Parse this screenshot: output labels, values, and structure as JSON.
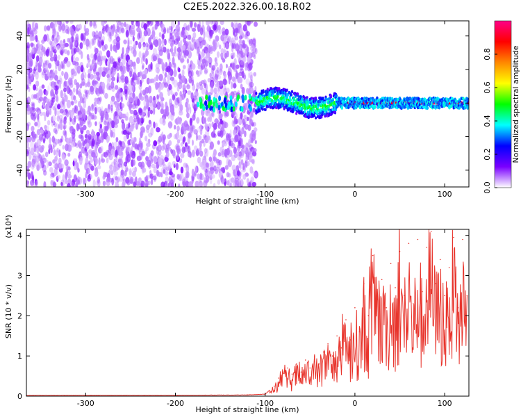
{
  "figure": {
    "title": "C2E5.2022.326.00.18.R02"
  },
  "chart_data": [
    {
      "type": "heatmap",
      "title": "",
      "xlabel": "Height of straight line (km)",
      "ylabel": "Frequency (Hz)",
      "xlim": [
        -366,
        127
      ],
      "ylim": [
        -50,
        49
      ],
      "xticks": [
        "-300",
        "-200",
        "-100",
        "0",
        "100"
      ],
      "yticks": [
        "-40",
        "-20",
        "0",
        "20",
        "40"
      ],
      "regions": [
        {
          "name": "broadband noise",
          "x": [
            -366,
            -110
          ],
          "y": [
            -50,
            49
          ]
        },
        {
          "name": "sporadic near-zero returns",
          "x": [
            -175,
            -110
          ],
          "y": [
            -4,
            4
          ]
        },
        {
          "name": "wavy signal band",
          "x": [
            -110,
            -20
          ],
          "y": [
            -8,
            8
          ]
        },
        {
          "name": "strong steady signal",
          "x": [
            -20,
            127
          ],
          "y": [
            -2,
            2
          ]
        }
      ],
      "colorbar": {
        "label": "Normalized spectral amplitude",
        "range": [
          0,
          1
        ],
        "ticks": [
          "0.0",
          "0.2",
          "0.4",
          "0.6",
          "0.8"
        ],
        "colors": [
          "#ffffff",
          "#7a00ff",
          "#0000ff",
          "#00ffff",
          "#00ff00",
          "#ffff00",
          "#ff8800",
          "#ff0000",
          "#ff0088"
        ]
      },
      "grid": false
    },
    {
      "type": "line",
      "title": "",
      "xlabel": "Height of straight line (km)",
      "ylabel": "SNR (10 * v/v)",
      "scale_label": "(x10⁴)",
      "xlim": [
        -366,
        127
      ],
      "ylim": [
        0,
        4.15
      ],
      "xticks": [
        "-300",
        "-200",
        "-100",
        "0",
        "100"
      ],
      "yticks": [
        "0",
        "1",
        "2",
        "3",
        "4"
      ],
      "color": "#e8342c",
      "grid": false,
      "series": [
        {
          "x": [
            -366,
            -300,
            -200,
            -120,
            -100,
            -90,
            -85,
            -80,
            -75,
            -70,
            -65,
            -60,
            -55,
            -50,
            -45,
            -40,
            -35,
            -30,
            -25,
            -20,
            -15,
            -10,
            -5,
            0,
            5,
            10,
            15,
            20,
            25,
            30,
            35,
            40,
            45,
            50,
            55,
            60,
            65,
            70,
            75,
            80,
            85,
            90,
            95,
            100,
            105,
            110,
            115,
            120,
            125
          ],
          "y": [
            0.02,
            0.02,
            0.02,
            0.03,
            0.05,
            0.25,
            0.45,
            0.6,
            0.7,
            0.55,
            0.8,
            0.6,
            0.9,
            0.7,
            1.0,
            0.8,
            1.1,
            1.3,
            1.0,
            1.5,
            1.2,
            1.9,
            1.4,
            2.2,
            1.6,
            2.8,
            2.0,
            3.5,
            2.4,
            2.9,
            2.2,
            3.3,
            2.7,
            3.6,
            2.5,
            3.8,
            2.3,
            3.9,
            2.6,
            3.7,
            4.1,
            2.8,
            3.4,
            2.5,
            3.2,
            3.95,
            2.2,
            3.9,
            2.5
          ]
        }
      ]
    }
  ]
}
